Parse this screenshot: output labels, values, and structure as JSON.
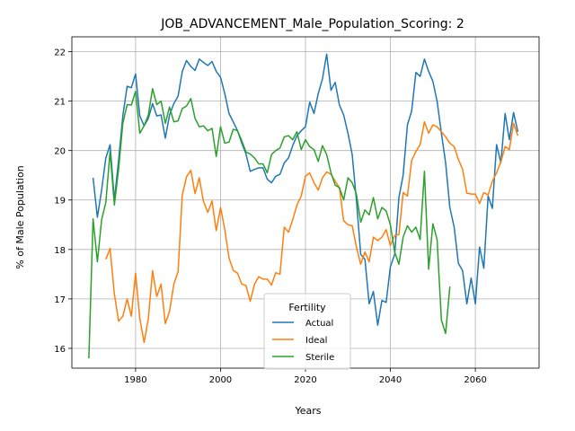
{
  "chart_data": {
    "type": "line",
    "title": "JOB_ADVANCEMENT_Male_Population_Scoring: 2",
    "xlabel": "Years",
    "ylabel": "% of Male Population",
    "xlim": [
      1965,
      2075
    ],
    "ylim": [
      15.6,
      22.3
    ],
    "xticks": [
      1980,
      2000,
      2020,
      2040,
      2060
    ],
    "yticks": [
      16,
      17,
      18,
      19,
      20,
      21,
      22
    ],
    "grid": true,
    "legend": {
      "title": "Fertility",
      "placement": "lower-center"
    },
    "series": [
      {
        "name": "Actual",
        "color": "#1f77b4",
        "points": [
          [
            1970,
            19.45
          ],
          [
            1971,
            18.65
          ],
          [
            1972,
            19.2
          ],
          [
            1973,
            19.85
          ],
          [
            1974,
            20.12
          ],
          [
            1975,
            19.0
          ],
          [
            1976,
            19.8
          ],
          [
            1977,
            20.7
          ],
          [
            1978,
            21.3
          ],
          [
            1979,
            21.27
          ],
          [
            1980,
            21.55
          ],
          [
            1981,
            20.7
          ],
          [
            1982,
            20.5
          ],
          [
            1983,
            20.65
          ],
          [
            1984,
            20.95
          ],
          [
            1985,
            20.7
          ],
          [
            1986,
            20.72
          ],
          [
            1987,
            20.25
          ],
          [
            1988,
            20.72
          ],
          [
            1989,
            20.95
          ],
          [
            1990,
            21.1
          ],
          [
            1991,
            21.6
          ],
          [
            1992,
            21.82
          ],
          [
            1993,
            21.7
          ],
          [
            1994,
            21.62
          ],
          [
            1995,
            21.85
          ],
          [
            1996,
            21.78
          ],
          [
            1997,
            21.72
          ],
          [
            1998,
            21.8
          ],
          [
            1999,
            21.6
          ],
          [
            2000,
            21.48
          ],
          [
            2001,
            21.15
          ],
          [
            2002,
            20.75
          ],
          [
            2003,
            20.58
          ],
          [
            2004,
            20.4
          ],
          [
            2005,
            20.15
          ],
          [
            2006,
            19.93
          ],
          [
            2007,
            19.58
          ],
          [
            2008,
            19.62
          ],
          [
            2009,
            19.65
          ],
          [
            2010,
            19.65
          ],
          [
            2011,
            19.42
          ],
          [
            2012,
            19.35
          ],
          [
            2013,
            19.48
          ],
          [
            2014,
            19.52
          ],
          [
            2015,
            19.75
          ],
          [
            2016,
            19.85
          ],
          [
            2017,
            20.1
          ],
          [
            2018,
            20.3
          ],
          [
            2019,
            20.4
          ],
          [
            2020,
            20.48
          ],
          [
            2021,
            20.98
          ],
          [
            2022,
            20.75
          ],
          [
            2023,
            21.15
          ],
          [
            2024,
            21.45
          ],
          [
            2025,
            21.95
          ],
          [
            2026,
            21.22
          ],
          [
            2027,
            21.38
          ],
          [
            2028,
            20.92
          ],
          [
            2029,
            20.72
          ],
          [
            2030,
            20.35
          ],
          [
            2031,
            19.92
          ],
          [
            2032,
            19.0
          ],
          [
            2033,
            17.9
          ],
          [
            2034,
            17.8
          ],
          [
            2035,
            16.9
          ],
          [
            2036,
            17.15
          ],
          [
            2037,
            16.47
          ],
          [
            2038,
            16.97
          ],
          [
            2039,
            16.93
          ],
          [
            2040,
            17.65
          ],
          [
            2041,
            17.9
          ],
          [
            2042,
            19.05
          ],
          [
            2043,
            19.5
          ],
          [
            2044,
            20.52
          ],
          [
            2045,
            20.8
          ],
          [
            2046,
            21.58
          ],
          [
            2047,
            21.5
          ],
          [
            2048,
            21.85
          ],
          [
            2049,
            21.6
          ],
          [
            2050,
            21.4
          ],
          [
            2051,
            21.0
          ],
          [
            2052,
            20.35
          ],
          [
            2053,
            19.75
          ],
          [
            2054,
            18.85
          ],
          [
            2055,
            18.45
          ],
          [
            2056,
            17.72
          ],
          [
            2057,
            17.57
          ],
          [
            2058,
            16.9
          ],
          [
            2059,
            17.42
          ],
          [
            2060,
            16.9
          ],
          [
            2061,
            18.05
          ],
          [
            2062,
            17.62
          ],
          [
            2063,
            19.08
          ],
          [
            2064,
            18.83
          ],
          [
            2065,
            20.12
          ],
          [
            2066,
            19.75
          ],
          [
            2067,
            20.75
          ],
          [
            2068,
            20.22
          ],
          [
            2069,
            20.77
          ],
          [
            2070,
            20.38
          ]
        ]
      },
      {
        "name": "Ideal",
        "color": "#ff7f0e",
        "points": [
          [
            1973,
            17.8
          ],
          [
            1974,
            18.02
          ],
          [
            1975,
            17.1
          ],
          [
            1976,
            16.55
          ],
          [
            1977,
            16.65
          ],
          [
            1978,
            17.0
          ],
          [
            1979,
            16.65
          ],
          [
            1980,
            17.52
          ],
          [
            1981,
            16.6
          ],
          [
            1982,
            16.12
          ],
          [
            1983,
            16.6
          ],
          [
            1984,
            17.57
          ],
          [
            1985,
            17.05
          ],
          [
            1986,
            17.3
          ],
          [
            1987,
            16.5
          ],
          [
            1988,
            16.75
          ],
          [
            1989,
            17.3
          ],
          [
            1990,
            17.55
          ],
          [
            1991,
            19.1
          ],
          [
            1992,
            19.47
          ],
          [
            1993,
            19.6
          ],
          [
            1994,
            19.13
          ],
          [
            1995,
            19.45
          ],
          [
            1996,
            18.97
          ],
          [
            1997,
            18.75
          ],
          [
            1998,
            18.98
          ],
          [
            1999,
            18.38
          ],
          [
            2000,
            18.85
          ],
          [
            2001,
            18.4
          ],
          [
            2002,
            17.83
          ],
          [
            2003,
            17.58
          ],
          [
            2004,
            17.52
          ],
          [
            2005,
            17.3
          ],
          [
            2006,
            17.27
          ],
          [
            2007,
            16.95
          ],
          [
            2008,
            17.3
          ],
          [
            2009,
            17.45
          ],
          [
            2010,
            17.4
          ],
          [
            2011,
            17.4
          ],
          [
            2012,
            17.28
          ],
          [
            2013,
            17.53
          ],
          [
            2014,
            17.5
          ],
          [
            2015,
            18.45
          ],
          [
            2016,
            18.35
          ],
          [
            2017,
            18.6
          ],
          [
            2018,
            18.9
          ],
          [
            2019,
            19.08
          ],
          [
            2020,
            19.48
          ],
          [
            2021,
            19.55
          ],
          [
            2022,
            19.35
          ],
          [
            2023,
            19.2
          ],
          [
            2024,
            19.45
          ],
          [
            2025,
            19.57
          ],
          [
            2026,
            19.52
          ],
          [
            2027,
            19.38
          ],
          [
            2028,
            19.25
          ],
          [
            2029,
            18.58
          ],
          [
            2030,
            18.5
          ],
          [
            2031,
            18.48
          ],
          [
            2032,
            18.05
          ],
          [
            2033,
            17.7
          ],
          [
            2034,
            17.95
          ],
          [
            2035,
            17.75
          ],
          [
            2036,
            18.25
          ],
          [
            2037,
            18.18
          ],
          [
            2038,
            18.25
          ],
          [
            2039,
            18.4
          ],
          [
            2040,
            18.08
          ],
          [
            2041,
            18.28
          ],
          [
            2042,
            18.3
          ],
          [
            2043,
            19.15
          ],
          [
            2044,
            19.08
          ],
          [
            2045,
            19.8
          ],
          [
            2046,
            19.98
          ],
          [
            2047,
            20.12
          ],
          [
            2048,
            20.58
          ],
          [
            2049,
            20.35
          ],
          [
            2050,
            20.52
          ],
          [
            2051,
            20.48
          ],
          [
            2052,
            20.38
          ],
          [
            2053,
            20.28
          ],
          [
            2054,
            20.15
          ],
          [
            2055,
            20.08
          ],
          [
            2056,
            19.82
          ],
          [
            2057,
            19.62
          ],
          [
            2058,
            19.14
          ],
          [
            2059,
            19.12
          ],
          [
            2060,
            19.12
          ],
          [
            2061,
            18.93
          ],
          [
            2062,
            19.15
          ],
          [
            2063,
            19.1
          ],
          [
            2064,
            19.38
          ],
          [
            2065,
            19.55
          ],
          [
            2066,
            19.77
          ],
          [
            2067,
            20.08
          ],
          [
            2068,
            20.02
          ],
          [
            2069,
            20.55
          ],
          [
            2070,
            20.3
          ]
        ]
      },
      {
        "name": "Sterile",
        "color": "#2ca02c",
        "points": [
          [
            1969,
            15.8
          ],
          [
            1970,
            18.62
          ],
          [
            1971,
            17.75
          ],
          [
            1972,
            18.6
          ],
          [
            1973,
            18.95
          ],
          [
            1974,
            19.98
          ],
          [
            1975,
            18.9
          ],
          [
            1976,
            19.62
          ],
          [
            1977,
            20.55
          ],
          [
            1978,
            20.93
          ],
          [
            1979,
            20.92
          ],
          [
            1980,
            21.2
          ],
          [
            1981,
            20.35
          ],
          [
            1982,
            20.5
          ],
          [
            1983,
            20.72
          ],
          [
            1984,
            21.25
          ],
          [
            1985,
            20.93
          ],
          [
            1986,
            21.0
          ],
          [
            1987,
            20.55
          ],
          [
            1988,
            20.88
          ],
          [
            1989,
            20.58
          ],
          [
            1990,
            20.6
          ],
          [
            1991,
            20.85
          ],
          [
            1992,
            20.9
          ],
          [
            1993,
            21.05
          ],
          [
            1994,
            20.65
          ],
          [
            1995,
            20.48
          ],
          [
            1996,
            20.5
          ],
          [
            1997,
            20.4
          ],
          [
            1998,
            20.45
          ],
          [
            1999,
            19.88
          ],
          [
            2000,
            20.48
          ],
          [
            2001,
            20.15
          ],
          [
            2002,
            20.17
          ],
          [
            2003,
            20.43
          ],
          [
            2004,
            20.4
          ],
          [
            2005,
            20.2
          ],
          [
            2006,
            19.97
          ],
          [
            2007,
            19.93
          ],
          [
            2008,
            19.85
          ],
          [
            2009,
            19.73
          ],
          [
            2010,
            19.73
          ],
          [
            2011,
            19.55
          ],
          [
            2012,
            19.92
          ],
          [
            2013,
            20.0
          ],
          [
            2014,
            20.05
          ],
          [
            2015,
            20.28
          ],
          [
            2016,
            20.3
          ],
          [
            2017,
            20.22
          ],
          [
            2018,
            20.38
          ],
          [
            2019,
            20.02
          ],
          [
            2020,
            20.22
          ],
          [
            2021,
            20.08
          ],
          [
            2022,
            20.02
          ],
          [
            2023,
            19.78
          ],
          [
            2024,
            20.1
          ],
          [
            2025,
            19.92
          ],
          [
            2026,
            19.55
          ],
          [
            2027,
            19.3
          ],
          [
            2028,
            19.25
          ],
          [
            2029,
            19.0
          ],
          [
            2030,
            19.45
          ],
          [
            2031,
            19.35
          ],
          [
            2032,
            19.12
          ],
          [
            2033,
            18.55
          ],
          [
            2034,
            18.8
          ],
          [
            2035,
            18.7
          ],
          [
            2036,
            19.05
          ],
          [
            2037,
            18.62
          ],
          [
            2038,
            18.85
          ],
          [
            2039,
            18.78
          ],
          [
            2040,
            18.5
          ],
          [
            2041,
            17.95
          ],
          [
            2042,
            17.7
          ],
          [
            2043,
            18.25
          ],
          [
            2044,
            18.48
          ],
          [
            2045,
            18.35
          ],
          [
            2046,
            18.45
          ],
          [
            2047,
            18.2
          ],
          [
            2048,
            19.58
          ],
          [
            2049,
            17.6
          ],
          [
            2050,
            18.52
          ],
          [
            2051,
            18.2
          ],
          [
            2052,
            16.57
          ],
          [
            2053,
            16.3
          ],
          [
            2054,
            17.25
          ]
        ]
      }
    ]
  }
}
